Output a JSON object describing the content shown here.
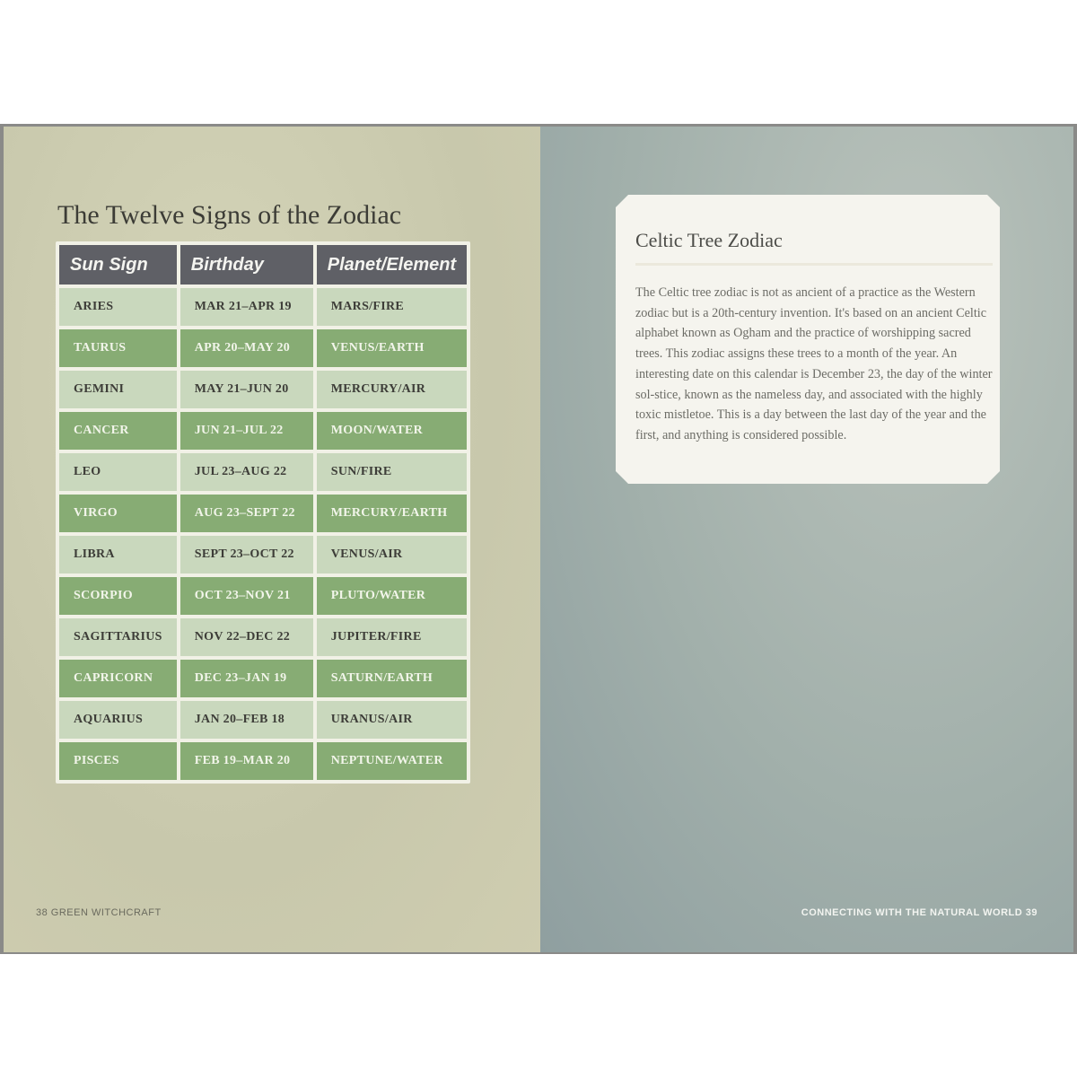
{
  "left_page": {
    "title": "The Twelve Signs of the Zodiac",
    "footer": "38  GREEN WITCHCRAFT",
    "table": {
      "headers": [
        "Sun Sign",
        "Birthday",
        "Planet/Element"
      ],
      "rows": [
        [
          "ARIES",
          "MAR 21–APR 19",
          "MARS/FIRE"
        ],
        [
          "TAURUS",
          "APR 20–MAY 20",
          "VENUS/EARTH"
        ],
        [
          "GEMINI",
          "MAY 21–JUN 20",
          "MERCURY/AIR"
        ],
        [
          "CANCER",
          "JUN 21–JUL 22",
          "MOON/WATER"
        ],
        [
          "LEO",
          "JUL 23–AUG 22",
          "SUN/FIRE"
        ],
        [
          "VIRGO",
          "AUG 23–SEPT 22",
          "MERCURY/EARTH"
        ],
        [
          "LIBRA",
          "SEPT 23–OCT 22",
          "VENUS/AIR"
        ],
        [
          "SCORPIO",
          "OCT 23–NOV 21",
          "PLUTO/WATER"
        ],
        [
          "SAGITTARIUS",
          "NOV 22–DEC 22",
          "JUPITER/FIRE"
        ],
        [
          "CAPRICORN",
          "DEC 23–JAN 19",
          "SATURN/EARTH"
        ],
        [
          "AQUARIUS",
          "JAN 20–FEB 18",
          "URANUS/AIR"
        ],
        [
          "PISCES",
          "FEB 19–MAR 20",
          "NEPTUNE/WATER"
        ]
      ]
    }
  },
  "right_page": {
    "box_title": "Celtic Tree Zodiac",
    "box_text": "The Celtic tree zodiac is not as ancient of a practice as the Western zodiac but is a 20th-century invention. It's based on an ancient Celtic alphabet known as Ogham and the practice of worshipping sacred trees. This zodiac assigns these trees to a month of the year. An interesting date on this calendar is December 23, the day of the winter sol-stice, known as the nameless day, and associated with the highly toxic mistletoe. This is a day between the last day of the year and the first, and anything is considered possible.",
    "footer": "CONNECTING WITH THE NATURAL WORLD  39"
  },
  "colors": {
    "header": "#5f6066",
    "row_light": "#c9d8bd",
    "row_dark": "#87ac74"
  }
}
